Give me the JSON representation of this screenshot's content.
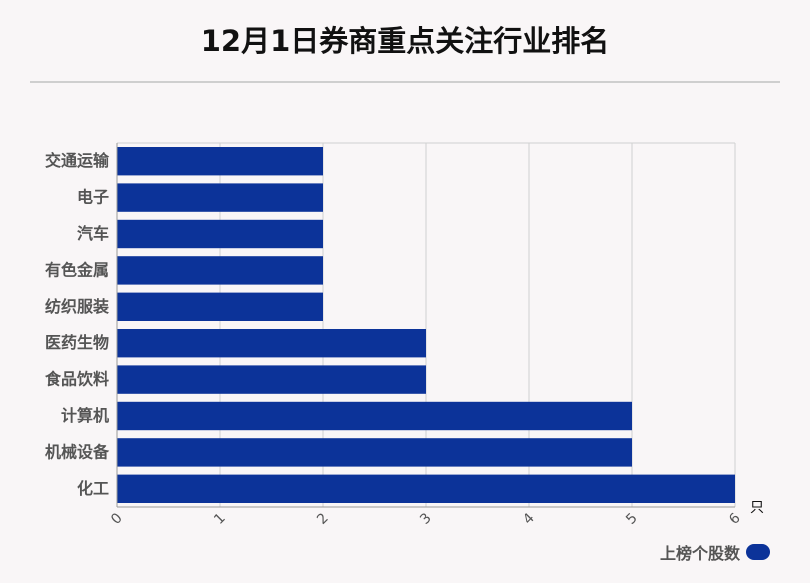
{
  "title": "12月1日券商重点关注行业排名",
  "legend": {
    "label": "上榜个股数"
  },
  "colors": {
    "bar": "#0c3399",
    "grid": "#d0d0d0",
    "axis": "#999999",
    "label": "#555555"
  },
  "chart_data": {
    "type": "bar",
    "orientation": "horizontal",
    "title": "12月1日券商重点关注行业排名",
    "categories": [
      "交通运输",
      "电子",
      "汽车",
      "有色金属",
      "纺织服装",
      "医药生物",
      "食品饮料",
      "计算机",
      "机械设备",
      "化工"
    ],
    "series": [
      {
        "name": "上榜个股数",
        "values": [
          2,
          2,
          2,
          2,
          2,
          3,
          3,
          5,
          5,
          6
        ]
      }
    ],
    "xlim": [
      0,
      6
    ],
    "xticks": [
      "0",
      "1",
      "2",
      "3",
      "4",
      "5",
      "6"
    ],
    "xunit": "只",
    "grid": true,
    "legend_position": "bottom-right"
  }
}
